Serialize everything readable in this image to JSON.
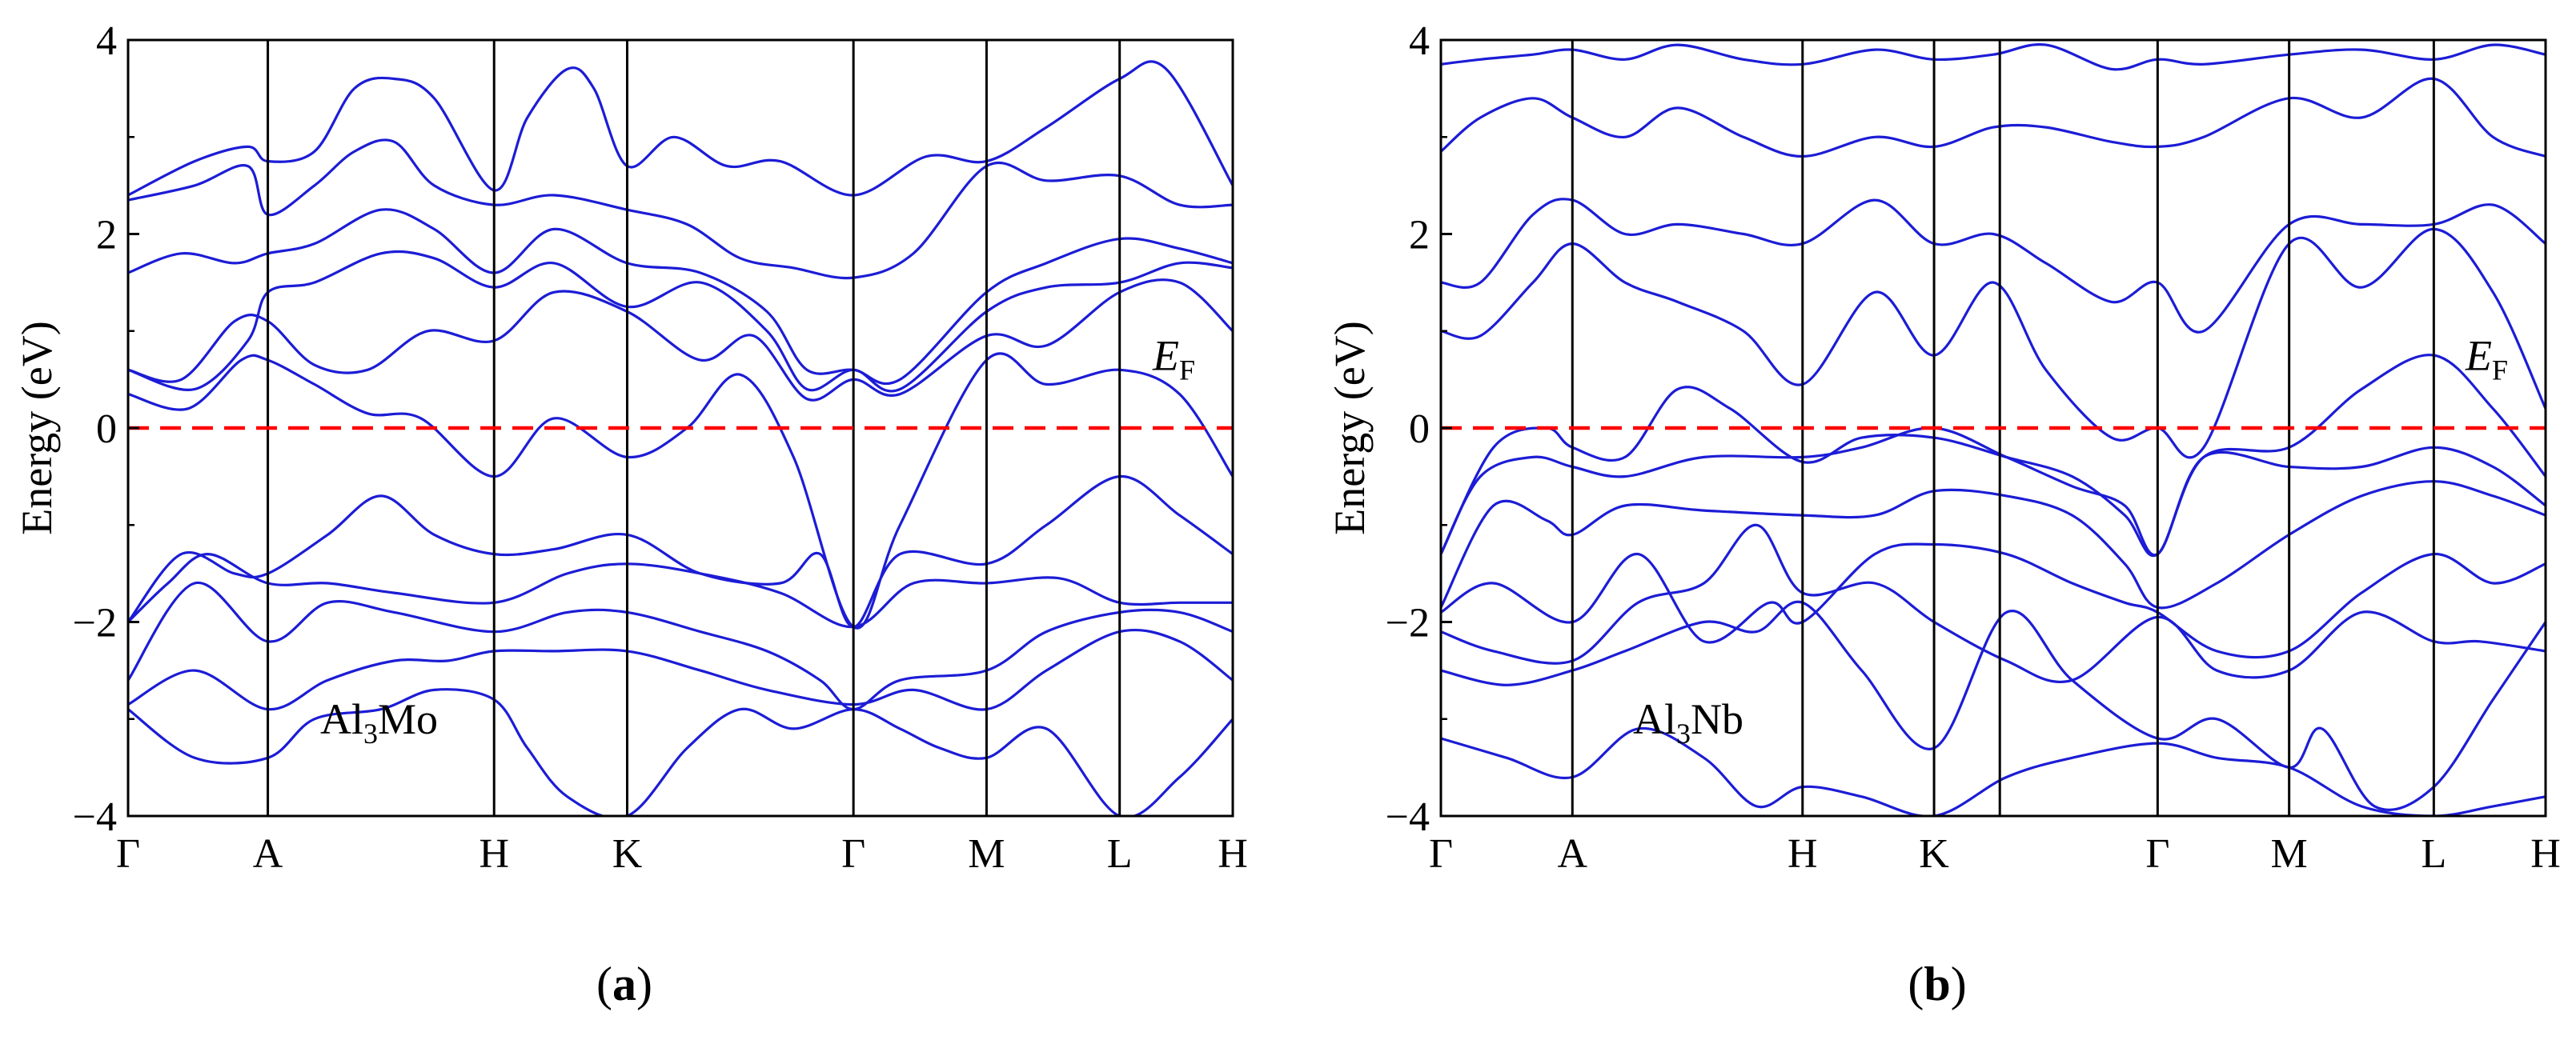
{
  "chart_data": [
    {
      "type": "line",
      "panel_label": "(a)",
      "panel_letter": "a",
      "material": {
        "base": "Al",
        "subscript": "3",
        "rest": "Mo"
      },
      "ylabel": "Energy (eV)",
      "ylim": [
        -4,
        4
      ],
      "yticks": [
        -4,
        -2,
        0,
        2,
        4
      ],
      "ytick_labels": [
        "−4",
        "−2",
        "0",
        "2",
        "4"
      ],
      "xlim": [
        0,
        8.3
      ],
      "k_points": [
        {
          "label": "Γ",
          "x": 0
        },
        {
          "label": "A",
          "x": 1.05
        },
        {
          "label": "H",
          "x": 2.75
        },
        {
          "label": "K",
          "x": 3.75
        },
        {
          "label": "Γ",
          "x": 5.45
        },
        {
          "label": "M",
          "x": 6.45
        },
        {
          "label": "L",
          "x": 7.45
        },
        {
          "label": "H",
          "x": 8.3
        }
      ],
      "fermi_level": {
        "label_main": "E",
        "label_sub": "F",
        "energy": 0
      },
      "bands": [
        {
          "name": "band-1",
          "x": [
            0,
            0.5,
            1.05,
            1.4,
            1.9,
            2.3,
            2.75,
            3.0,
            3.3,
            3.75,
            4.2,
            4.6,
            5.0,
            5.45,
            5.8,
            6.1,
            6.45,
            6.9,
            7.45,
            7.9,
            8.3
          ],
          "y": [
            -2.9,
            -3.4,
            -3.4,
            -3.0,
            -2.9,
            -2.7,
            -2.8,
            -3.3,
            -3.8,
            -4.0,
            -3.3,
            -2.9,
            -3.1,
            -2.9,
            -3.1,
            -3.3,
            -3.4,
            -3.1,
            -4.0,
            -3.6,
            -3.0
          ]
        },
        {
          "name": "band-2",
          "x": [
            0,
            0.5,
            1.05,
            1.5,
            2.0,
            2.4,
            2.75,
            3.2,
            3.75,
            4.3,
            4.8,
            5.45,
            5.9,
            6.45,
            6.9,
            7.45,
            7.9,
            8.3
          ],
          "y": [
            -2.85,
            -2.5,
            -2.9,
            -2.6,
            -2.4,
            -2.4,
            -2.3,
            -2.3,
            -2.3,
            -2.5,
            -2.7,
            -2.85,
            -2.7,
            -2.9,
            -2.5,
            -2.1,
            -2.2,
            -2.6
          ]
        },
        {
          "name": "band-3",
          "x": [
            0,
            0.5,
            1.05,
            1.5,
            2.0,
            2.75,
            3.3,
            3.75,
            4.3,
            4.8,
            5.2,
            5.45,
            5.8,
            6.45,
            6.9,
            7.45,
            7.9,
            8.3
          ],
          "y": [
            -2.6,
            -1.6,
            -2.2,
            -1.8,
            -1.9,
            -2.1,
            -1.9,
            -1.9,
            -2.1,
            -2.3,
            -2.6,
            -2.9,
            -2.6,
            -2.5,
            -2.1,
            -1.9,
            -1.9,
            -2.1
          ]
        },
        {
          "name": "band-4",
          "x": [
            0,
            0.3,
            0.6,
            1.05,
            1.5,
            2.0,
            2.75,
            3.3,
            3.75,
            4.3,
            4.9,
            5.45,
            5.9,
            6.45,
            7.0,
            7.45,
            7.9,
            8.3
          ],
          "y": [
            -2.0,
            -1.6,
            -1.3,
            -1.6,
            -1.6,
            -1.7,
            -1.8,
            -1.5,
            -1.4,
            -1.5,
            -1.7,
            -2.05,
            -1.6,
            -1.6,
            -1.55,
            -1.8,
            -1.8,
            -1.8
          ]
        },
        {
          "name": "band-5",
          "x": [
            0,
            0.4,
            0.8,
            1.05,
            1.5,
            1.9,
            2.3,
            2.75,
            3.2,
            3.75,
            4.3,
            4.9,
            5.2,
            5.45,
            5.8,
            6.45,
            6.9,
            7.45,
            7.9,
            8.3
          ],
          "y": [
            -2.0,
            -1.3,
            -1.5,
            -1.5,
            -1.1,
            -0.7,
            -1.1,
            -1.3,
            -1.25,
            -1.1,
            -1.5,
            -1.6,
            -1.3,
            -2.05,
            -1.3,
            -1.4,
            -1.0,
            -0.5,
            -0.9,
            -1.3
          ]
        },
        {
          "name": "band-6",
          "x": [
            0,
            0.45,
            0.85,
            1.05,
            1.4,
            1.8,
            2.2,
            2.75,
            3.2,
            3.75,
            4.2,
            4.6,
            5.0,
            5.45,
            5.8,
            6.45,
            6.9,
            7.45,
            7.9,
            8.3
          ],
          "y": [
            0.35,
            0.2,
            0.7,
            0.7,
            0.45,
            0.15,
            0.1,
            -0.5,
            0.1,
            -0.3,
            0.0,
            0.55,
            -0.3,
            -2.05,
            -1.0,
            0.7,
            0.45,
            0.6,
            0.35,
            -0.5
          ]
        },
        {
          "name": "band-7",
          "x": [
            0,
            0.4,
            0.8,
            1.05,
            1.4,
            1.8,
            2.25,
            2.75,
            3.2,
            3.75,
            4.3,
            4.7,
            5.1,
            5.45,
            5.8,
            6.45,
            6.9,
            7.45,
            7.9,
            8.3
          ],
          "y": [
            0.6,
            0.5,
            1.1,
            1.1,
            0.65,
            0.6,
            1.0,
            0.9,
            1.4,
            1.2,
            0.7,
            0.95,
            0.3,
            0.5,
            0.35,
            0.95,
            0.85,
            1.4,
            1.5,
            1.0
          ]
        },
        {
          "name": "band-8",
          "x": [
            0,
            0.5,
            0.9,
            1.05,
            1.4,
            1.9,
            2.3,
            2.75,
            3.2,
            3.75,
            4.3,
            4.8,
            5.1,
            5.45,
            5.8,
            6.45,
            6.9,
            7.45,
            7.9,
            8.3
          ],
          "y": [
            0.6,
            0.4,
            0.9,
            1.4,
            1.5,
            1.8,
            1.75,
            1.45,
            1.7,
            1.25,
            1.5,
            1.0,
            0.4,
            0.6,
            0.4,
            1.2,
            1.45,
            1.5,
            1.7,
            1.65
          ]
        },
        {
          "name": "band-9",
          "x": [
            0,
            0.4,
            0.8,
            1.05,
            1.4,
            1.9,
            2.3,
            2.75,
            3.2,
            3.75,
            4.3,
            4.8,
            5.1,
            5.45,
            5.8,
            6.45,
            6.9,
            7.45,
            7.9,
            8.3
          ],
          "y": [
            1.6,
            1.8,
            1.7,
            1.8,
            1.9,
            2.25,
            2.05,
            1.6,
            2.05,
            1.7,
            1.6,
            1.2,
            0.6,
            0.6,
            0.5,
            1.4,
            1.7,
            1.95,
            1.85,
            1.7
          ]
        },
        {
          "name": "band-10",
          "x": [
            0,
            0.5,
            0.9,
            1.05,
            1.4,
            1.7,
            2.0,
            2.3,
            2.75,
            3.2,
            3.75,
            4.2,
            4.6,
            5.0,
            5.45,
            5.9,
            6.45,
            6.9,
            7.45,
            7.9,
            8.3
          ],
          "y": [
            2.35,
            2.5,
            2.7,
            2.2,
            2.5,
            2.85,
            2.95,
            2.5,
            2.3,
            2.4,
            2.25,
            2.1,
            1.75,
            1.65,
            1.55,
            1.8,
            2.7,
            2.55,
            2.6,
            2.3,
            2.3
          ]
        },
        {
          "name": "band-11",
          "x": [
            0,
            0.5,
            0.9,
            1.05,
            1.4,
            1.7,
            2.0,
            2.3,
            2.75,
            3.0,
            3.3,
            3.5,
            3.75,
            4.1,
            4.5,
            4.9,
            5.45,
            6.0,
            6.45,
            6.9,
            7.45,
            7.8,
            8.3
          ],
          "y": [
            2.4,
            2.75,
            2.9,
            2.75,
            2.85,
            3.5,
            3.6,
            3.4,
            2.45,
            3.2,
            3.7,
            3.5,
            2.7,
            3.0,
            2.7,
            2.75,
            2.4,
            2.8,
            2.75,
            3.1,
            3.6,
            3.7,
            2.5
          ]
        }
      ]
    },
    {
      "type": "line",
      "panel_label": "(b)",
      "panel_letter": "b",
      "material": {
        "base": "Al",
        "subscript": "3",
        "rest": "Nb"
      },
      "ylabel": "Energy (eV)",
      "ylim": [
        -4,
        4
      ],
      "yticks": [
        -4,
        -2,
        0,
        2,
        4
      ],
      "ytick_labels": [
        "−4",
        "−2",
        "0",
        "2",
        "4"
      ],
      "xlim": [
        0,
        8.4
      ],
      "k_points": [
        {
          "label": "Γ",
          "x": 0
        },
        {
          "label": "A",
          "x": 1.0
        },
        {
          "label": "H",
          "x": 2.75
        },
        {
          "label": "K",
          "x": 3.75
        },
        {
          "label": "Γ",
          "x": 5.45
        },
        {
          "label": "M",
          "x": 6.45
        },
        {
          "label": "L",
          "x": 7.55
        },
        {
          "label": "H",
          "x": 8.4
        }
      ],
      "extra_vertical_lines": [
        4.25
      ],
      "fermi_level": {
        "label_main": "E",
        "label_sub": "F",
        "energy": 0
      },
      "bands": [
        {
          "name": "band-1",
          "x": [
            0,
            0.5,
            1.0,
            1.5,
            2.0,
            2.4,
            2.75,
            3.2,
            3.75,
            4.3,
            4.8,
            5.45,
            5.9,
            6.45,
            7.0,
            7.55,
            8.0,
            8.4
          ],
          "y": [
            -3.2,
            -3.4,
            -3.6,
            -3.1,
            -3.4,
            -3.9,
            -3.7,
            -3.8,
            -4.0,
            -3.6,
            -3.4,
            -3.25,
            -3.4,
            -3.5,
            -3.9,
            -4.0,
            -3.9,
            -3.8
          ]
        },
        {
          "name": "band-2",
          "x": [
            0,
            0.5,
            1.0,
            1.4,
            2.0,
            2.4,
            2.75,
            3.2,
            3.75,
            4.3,
            4.8,
            5.45,
            5.9,
            6.45,
            6.7,
            7.1,
            7.55,
            8.0,
            8.4
          ],
          "y": [
            -2.5,
            -2.65,
            -2.5,
            -2.3,
            -2.0,
            -2.1,
            -1.8,
            -2.5,
            -3.3,
            -1.9,
            -2.6,
            -3.2,
            -3.0,
            -3.5,
            -3.1,
            -3.9,
            -3.7,
            -2.8,
            -2.0
          ]
        },
        {
          "name": "band-3",
          "x": [
            0,
            0.4,
            1.0,
            1.5,
            2.0,
            2.4,
            2.75,
            3.3,
            3.75,
            4.3,
            4.8,
            5.45,
            5.9,
            6.45,
            7.0,
            7.55,
            7.9,
            8.4
          ],
          "y": [
            -2.1,
            -2.3,
            -2.4,
            -1.8,
            -1.6,
            -1.0,
            -1.7,
            -1.6,
            -2.0,
            -2.4,
            -2.6,
            -1.95,
            -2.5,
            -2.5,
            -1.9,
            -2.2,
            -2.2,
            -2.3
          ]
        },
        {
          "name": "band-4",
          "x": [
            0,
            0.4,
            1.0,
            1.5,
            2.0,
            2.5,
            2.75,
            3.3,
            3.75,
            4.3,
            4.8,
            5.2,
            5.45,
            5.9,
            6.45,
            7.0,
            7.55,
            8.0,
            8.4
          ],
          "y": [
            -1.9,
            -1.6,
            -2.0,
            -1.3,
            -2.2,
            -1.8,
            -2.0,
            -1.3,
            -1.2,
            -1.3,
            -1.6,
            -1.8,
            -1.9,
            -2.3,
            -2.3,
            -1.7,
            -1.3,
            -1.6,
            -1.4
          ]
        },
        {
          "name": "band-5",
          "x": [
            0,
            0.4,
            0.8,
            1.0,
            1.4,
            2.0,
            2.75,
            3.3,
            3.75,
            4.3,
            4.8,
            5.2,
            5.45,
            5.9,
            6.45,
            7.0,
            7.55,
            8.0,
            8.4
          ],
          "y": [
            -1.85,
            -0.8,
            -0.95,
            -1.1,
            -0.8,
            -0.85,
            -0.9,
            -0.9,
            -0.65,
            -0.7,
            -0.9,
            -1.4,
            -1.85,
            -1.6,
            -1.1,
            -0.7,
            -0.55,
            -0.7,
            -0.9
          ]
        },
        {
          "name": "band-6",
          "x": [
            0,
            0.3,
            0.7,
            1.0,
            1.4,
            2.0,
            2.75,
            3.2,
            3.75,
            4.3,
            4.8,
            5.2,
            5.45,
            5.8,
            6.45,
            7.0,
            7.55,
            8.0,
            8.4
          ],
          "y": [
            -1.3,
            -0.5,
            -0.3,
            -0.4,
            -0.5,
            -0.3,
            -0.3,
            -0.2,
            0.0,
            -0.3,
            -0.6,
            -0.8,
            -1.3,
            -0.3,
            -0.4,
            -0.4,
            -0.2,
            -0.4,
            -0.8
          ]
        },
        {
          "name": "band-7",
          "x": [
            0,
            0.4,
            0.8,
            1.0,
            1.4,
            1.8,
            2.2,
            2.75,
            3.2,
            3.75,
            4.3,
            4.8,
            5.2,
            5.45,
            5.8,
            6.45,
            7.0,
            7.55,
            8.0,
            8.4
          ],
          "y": [
            -1.3,
            -0.2,
            0.0,
            -0.2,
            -0.3,
            0.4,
            0.2,
            -0.35,
            -0.1,
            -0.1,
            -0.3,
            -0.5,
            -0.9,
            -1.3,
            -0.3,
            -0.2,
            0.4,
            0.75,
            0.2,
            -0.5
          ]
        },
        {
          "name": "band-8",
          "x": [
            0,
            0.3,
            0.7,
            1.0,
            1.4,
            1.8,
            2.3,
            2.75,
            3.3,
            3.75,
            4.2,
            4.6,
            5.1,
            5.45,
            5.8,
            6.45,
            7.0,
            7.55,
            8.0,
            8.4
          ],
          "y": [
            1.0,
            0.95,
            1.5,
            1.9,
            1.5,
            1.3,
            1.0,
            0.45,
            1.4,
            0.75,
            1.5,
            0.6,
            -0.1,
            0.0,
            -0.2,
            1.9,
            1.45,
            2.05,
            1.4,
            0.2
          ]
        },
        {
          "name": "band-9",
          "x": [
            0,
            0.3,
            0.7,
            1.0,
            1.4,
            1.8,
            2.3,
            2.75,
            3.3,
            3.75,
            4.2,
            4.6,
            5.1,
            5.45,
            5.8,
            6.45,
            7.0,
            7.55,
            8.0,
            8.4
          ],
          "y": [
            1.5,
            1.5,
            2.2,
            2.35,
            2.0,
            2.1,
            2.0,
            1.9,
            2.35,
            1.9,
            2.0,
            1.7,
            1.3,
            1.5,
            1.0,
            2.1,
            2.1,
            2.1,
            2.3,
            1.9
          ]
        },
        {
          "name": "band-10",
          "x": [
            0,
            0.3,
            0.7,
            1.0,
            1.4,
            1.8,
            2.3,
            2.75,
            3.3,
            3.75,
            4.2,
            4.6,
            5.1,
            5.45,
            5.8,
            6.45,
            7.0,
            7.55,
            8.0,
            8.4
          ],
          "y": [
            2.85,
            3.2,
            3.4,
            3.2,
            3.0,
            3.3,
            3.0,
            2.8,
            3.0,
            2.9,
            3.1,
            3.1,
            2.95,
            2.9,
            3.0,
            3.4,
            3.2,
            3.6,
            3.0,
            2.8
          ]
        },
        {
          "name": "band-11",
          "x": [
            0,
            0.3,
            0.7,
            1.0,
            1.4,
            1.8,
            2.3,
            2.75,
            3.3,
            3.75,
            4.2,
            4.6,
            5.1,
            5.45,
            5.8,
            6.45,
            7.0,
            7.55,
            8.0,
            8.4
          ],
          "y": [
            3.75,
            3.8,
            3.85,
            3.9,
            3.8,
            3.95,
            3.8,
            3.75,
            3.9,
            3.8,
            3.85,
            3.95,
            3.7,
            3.8,
            3.75,
            3.85,
            3.9,
            3.8,
            3.95,
            3.85
          ]
        }
      ]
    }
  ]
}
